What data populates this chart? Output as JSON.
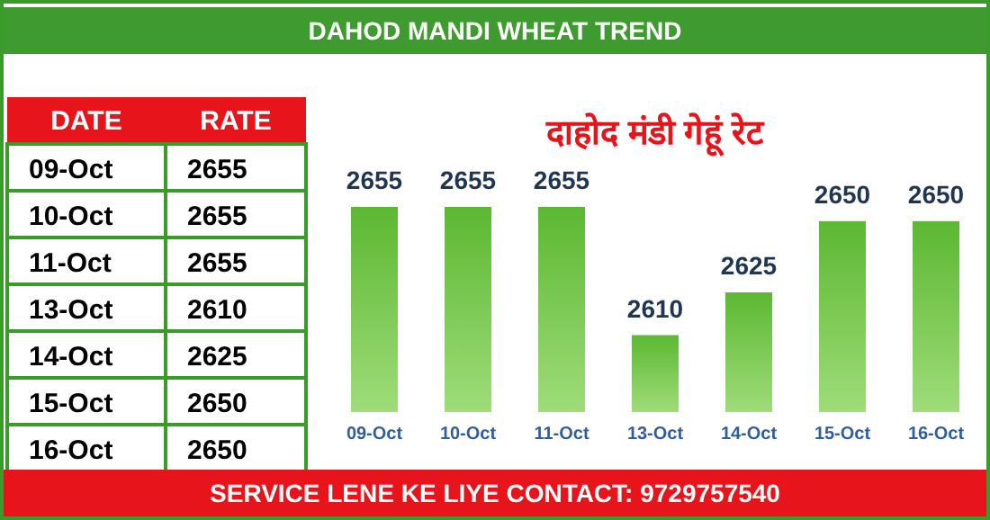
{
  "chart_data": [
    {
      "type": "other",
      "subtitle": "DAHOD MANDI WHEAT TREND",
      "annotations": [
        "DATE",
        "RATE"
      ],
      "categories": [
        "09-Oct",
        "10-Oct",
        "11-Oct",
        "13-Oct",
        "14-Oct",
        "15-Oct",
        "16-Oct"
      ],
      "values": [
        2655,
        2655,
        2655,
        2610,
        2625,
        2650,
        2650
      ],
      "data_labels": true
    },
    {
      "type": "bar",
      "title": "दाहोद मंडी गेहूं रेट",
      "categories": [
        "09-Oct",
        "10-Oct",
        "11-Oct",
        "13-Oct",
        "14-Oct",
        "15-Oct",
        "16-Oct"
      ],
      "series": [
        {
          "color": "#5cb832",
          "values": [
            2655,
            2655,
            2655,
            2610,
            2625,
            2650,
            2650
          ]
        }
      ],
      "ylim": [
        2583,
        2655
      ],
      "data_labels": true,
      "annotations": [
        "SERVICE LENE KE LIYE CONTACT: 9729757540"
      ]
    }
  ]
}
